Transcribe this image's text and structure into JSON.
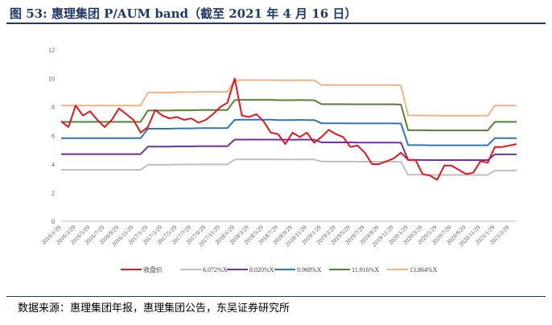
{
  "title": "图 53:  惠理集团 P/AUM band（截至 2021 年 4 月 16 日）",
  "source": "数据来源：惠理集团年报，惠理集团公告，东吴证券研究所",
  "colors": {
    "title": "#1f3864"
  },
  "chart_data": {
    "type": "line",
    "title": "",
    "xlabel": "",
    "ylabel": "",
    "ylim": [
      0,
      12
    ],
    "yticks": [
      0,
      2,
      4,
      6,
      8,
      10,
      12
    ],
    "grid": false,
    "legend_position": "bottom",
    "x_tick_labels": [
      "2016/1/29",
      "2016/3/29",
      "2016/5/29",
      "2016/7/29",
      "2016/9/29",
      "2016/11/29",
      "2017/1/29",
      "2017/3/29",
      "2017/5/29",
      "2017/7/29",
      "2017/9/29",
      "2017/11/29",
      "2018/1/29",
      "2018/3/29",
      "2018/5/29",
      "2018/7/29",
      "2018/9/29",
      "2018/11/29",
      "2019/1/29",
      "2019/3/29",
      "2019/5/29",
      "2019/7/29",
      "2019/9/29",
      "2019/11/29",
      "2020/1/29",
      "2020/3/29",
      "2020/5/29",
      "2020/7/29",
      "2020/9/29",
      "2020/11/29",
      "2021/1/29",
      "2021/3/29"
    ],
    "x": [
      "2016/1/29",
      "2016/2/29",
      "2016/3/29",
      "2016/4/29",
      "2016/5/29",
      "2016/6/29",
      "2016/7/29",
      "2016/8/29",
      "2016/9/29",
      "2016/10/29",
      "2016/11/29",
      "2016/12/29",
      "2017/1/29",
      "2017/2/28",
      "2017/3/29",
      "2017/4/29",
      "2017/5/29",
      "2017/6/29",
      "2017/7/29",
      "2017/8/29",
      "2017/9/29",
      "2017/10/29",
      "2017/11/29",
      "2017/12/29",
      "2018/1/29",
      "2018/2/28",
      "2018/3/29",
      "2018/4/29",
      "2018/5/29",
      "2018/6/29",
      "2018/7/29",
      "2018/8/29",
      "2018/9/29",
      "2018/10/29",
      "2018/11/29",
      "2018/12/29",
      "2019/1/29",
      "2019/2/28",
      "2019/3/29",
      "2019/4/29",
      "2019/5/29",
      "2019/6/29",
      "2019/7/29",
      "2019/8/29",
      "2019/9/29",
      "2019/10/29",
      "2019/11/29",
      "2019/12/29",
      "2020/1/29",
      "2020/2/29",
      "2020/3/29",
      "2020/4/29",
      "2020/5/29",
      "2020/6/29",
      "2020/7/29",
      "2020/8/29",
      "2020/9/29",
      "2020/10/29",
      "2020/11/29",
      "2020/12/29",
      "2021/1/29",
      "2021/2/28",
      "2021/3/29",
      "2021/4/16"
    ],
    "series": [
      {
        "name": "收盘价",
        "color": "#e8141c",
        "width": 2,
        "values": [
          7.0,
          6.6,
          8.1,
          7.4,
          7.7,
          7.1,
          6.6,
          7.1,
          7.9,
          7.5,
          7.1,
          6.2,
          6.6,
          7.8,
          7.4,
          7.2,
          7.3,
          7.1,
          7.2,
          6.9,
          7.1,
          7.5,
          8.0,
          8.3,
          10.0,
          7.4,
          7.3,
          7.5,
          7.0,
          6.2,
          6.1,
          5.4,
          6.2,
          5.9,
          6.2,
          5.5,
          5.9,
          6.4,
          6.1,
          5.9,
          5.2,
          5.3,
          4.8,
          4.0,
          4.0,
          4.2,
          4.4,
          4.8,
          4.3,
          4.3,
          3.3,
          3.2,
          2.9,
          3.9,
          3.9,
          3.6,
          3.3,
          3.4,
          4.2,
          4.1,
          5.2,
          5.2,
          5.3,
          5.4
        ]
      },
      {
        "name": "6.072%X",
        "color": "#bfbfbf",
        "width": 2,
        "values": [
          3.6,
          3.6,
          3.6,
          3.6,
          3.6,
          3.6,
          3.6,
          3.6,
          3.6,
          3.6,
          3.6,
          3.6,
          3.95,
          3.95,
          3.95,
          3.95,
          3.97,
          3.97,
          3.97,
          3.98,
          3.98,
          3.98,
          3.98,
          3.98,
          4.32,
          4.33,
          4.33,
          4.33,
          4.33,
          4.33,
          4.32,
          4.32,
          4.32,
          4.33,
          4.32,
          4.32,
          4.18,
          4.18,
          4.18,
          4.18,
          4.18,
          4.17,
          4.17,
          4.17,
          4.17,
          4.17,
          4.17,
          4.16,
          3.25,
          3.25,
          3.25,
          3.24,
          3.24,
          3.24,
          3.24,
          3.24,
          3.24,
          3.24,
          3.24,
          3.24,
          3.55,
          3.55,
          3.55,
          3.55
        ]
      },
      {
        "name": "8.020%X",
        "color": "#7030a0",
        "width": 2,
        "values": [
          4.7,
          4.7,
          4.7,
          4.7,
          4.7,
          4.7,
          4.7,
          4.7,
          4.7,
          4.7,
          4.7,
          4.7,
          5.22,
          5.22,
          5.22,
          5.22,
          5.24,
          5.24,
          5.24,
          5.25,
          5.25,
          5.25,
          5.25,
          5.25,
          5.72,
          5.72,
          5.72,
          5.72,
          5.72,
          5.72,
          5.71,
          5.71,
          5.71,
          5.72,
          5.71,
          5.71,
          5.52,
          5.52,
          5.52,
          5.52,
          5.52,
          5.51,
          5.51,
          5.51,
          5.51,
          5.51,
          5.51,
          5.5,
          4.29,
          4.29,
          4.29,
          4.28,
          4.28,
          4.28,
          4.28,
          4.28,
          4.28,
          4.28,
          4.28,
          4.28,
          4.68,
          4.68,
          4.68,
          4.68
        ]
      },
      {
        "name": "9.968%X",
        "color": "#2e75b6",
        "width": 2,
        "values": [
          5.82,
          5.82,
          5.82,
          5.82,
          5.82,
          5.82,
          5.82,
          5.82,
          5.82,
          5.82,
          5.82,
          5.82,
          6.48,
          6.48,
          6.48,
          6.48,
          6.5,
          6.5,
          6.5,
          6.52,
          6.52,
          6.52,
          6.52,
          6.52,
          7.1,
          7.11,
          7.11,
          7.11,
          7.11,
          7.11,
          7.09,
          7.09,
          7.09,
          7.1,
          7.09,
          7.09,
          6.86,
          6.86,
          6.86,
          6.86,
          6.85,
          6.85,
          6.85,
          6.85,
          6.85,
          6.85,
          6.85,
          6.84,
          5.33,
          5.33,
          5.33,
          5.32,
          5.32,
          5.32,
          5.32,
          5.32,
          5.32,
          5.32,
          5.32,
          5.32,
          5.82,
          5.82,
          5.82,
          5.82
        ]
      },
      {
        "name": "11.916%X",
        "color": "#548235",
        "width": 2,
        "values": [
          6.96,
          6.96,
          6.96,
          6.96,
          6.96,
          6.96,
          6.96,
          6.96,
          6.96,
          6.96,
          6.96,
          6.96,
          7.75,
          7.75,
          7.75,
          7.75,
          7.77,
          7.77,
          7.77,
          7.79,
          7.79,
          7.79,
          7.79,
          7.79,
          8.48,
          8.5,
          8.5,
          8.5,
          8.5,
          8.5,
          8.48,
          8.48,
          8.48,
          8.49,
          8.48,
          8.48,
          8.2,
          8.2,
          8.2,
          8.2,
          8.19,
          8.19,
          8.19,
          8.19,
          8.19,
          8.19,
          8.19,
          8.17,
          6.37,
          6.37,
          6.37,
          6.36,
          6.36,
          6.36,
          6.36,
          6.36,
          6.36,
          6.36,
          6.36,
          6.36,
          6.96,
          6.96,
          6.96,
          6.96
        ]
      },
      {
        "name": "13.864%X",
        "color": "#f4b183",
        "width": 2,
        "values": [
          8.1,
          8.1,
          8.1,
          8.1,
          8.1,
          8.1,
          8.1,
          8.1,
          8.1,
          8.1,
          8.1,
          8.1,
          9.01,
          9.01,
          9.01,
          9.01,
          9.04,
          9.04,
          9.04,
          9.06,
          9.06,
          9.06,
          9.06,
          9.06,
          9.86,
          9.89,
          9.89,
          9.89,
          9.89,
          9.89,
          9.87,
          9.87,
          9.87,
          9.88,
          9.87,
          9.87,
          9.54,
          9.54,
          9.54,
          9.54,
          9.53,
          9.53,
          9.53,
          9.53,
          9.53,
          9.53,
          9.53,
          9.5,
          7.41,
          7.41,
          7.41,
          7.4,
          7.4,
          7.4,
          7.4,
          7.4,
          7.4,
          7.4,
          7.4,
          7.4,
          8.1,
          8.1,
          8.1,
          8.1
        ]
      }
    ]
  }
}
